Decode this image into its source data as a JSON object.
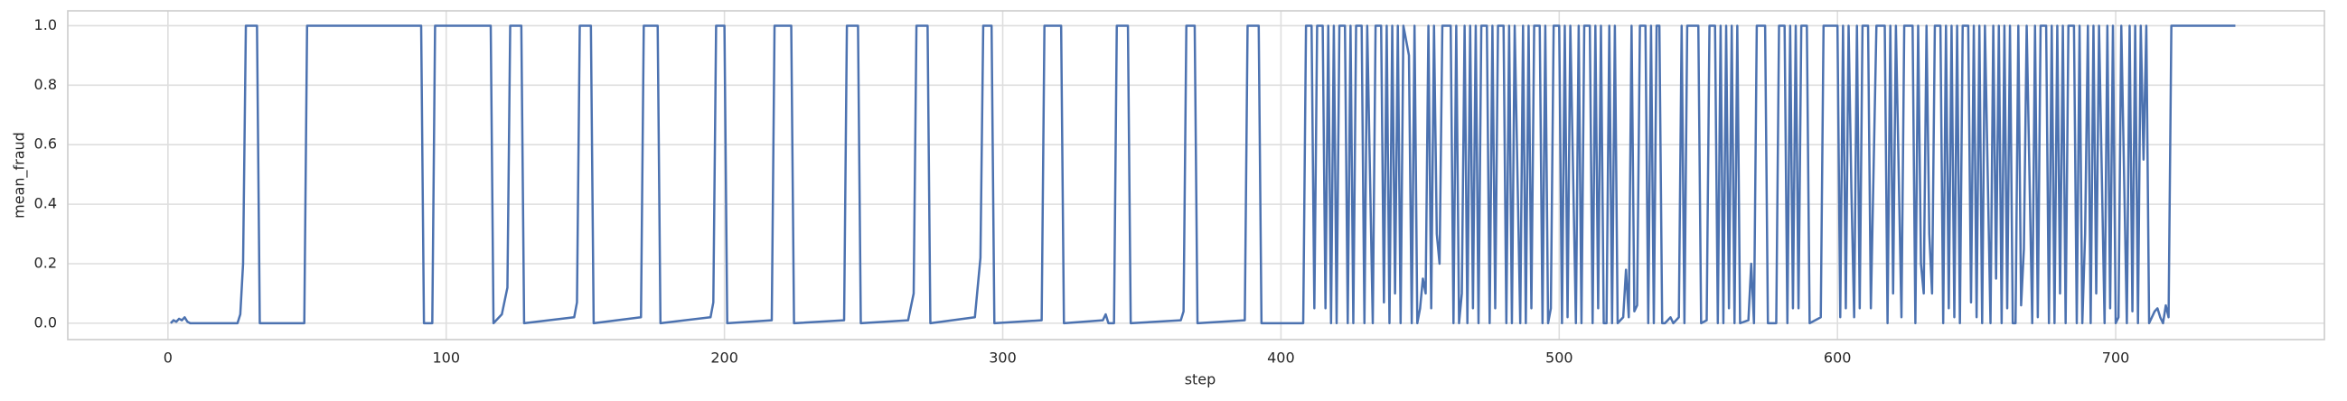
{
  "chart_data": {
    "type": "line",
    "xlabel": "step",
    "ylabel": "mean_fraud",
    "xlim": [
      -36,
      775
    ],
    "ylim": [
      -0.055,
      1.05
    ],
    "xticks": [
      0,
      100,
      200,
      300,
      400,
      500,
      600,
      700
    ],
    "yticks": [
      {
        "value": 0,
        "label": "0.0"
      },
      0.2,
      0.4,
      0.6,
      0.8,
      {
        "value": 1,
        "label": "1.0"
      }
    ],
    "grid": true,
    "series": [
      {
        "color": "#4c72b0",
        "x": [
          1,
          2,
          3,
          4,
          5,
          6,
          7,
          8,
          25,
          26,
          27,
          28,
          32,
          33,
          49,
          50,
          91,
          92,
          95,
          96,
          116,
          117,
          120,
          122,
          123,
          127,
          128,
          146,
          147,
          148,
          152,
          153,
          170,
          171,
          176,
          177,
          195,
          196,
          197,
          200,
          201,
          217,
          218,
          224,
          225,
          243,
          244,
          248,
          249,
          266,
          268,
          269,
          273,
          274,
          290,
          292,
          293,
          296,
          297,
          314,
          315,
          321,
          322,
          336,
          337,
          338,
          340,
          341,
          345,
          346,
          364,
          365,
          366,
          369,
          370,
          387,
          388,
          392,
          393,
          408,
          409,
          411,
          412,
          413,
          415,
          416,
          417,
          418,
          419,
          420,
          421,
          423,
          424,
          425,
          426,
          427,
          429,
          430,
          431,
          433,
          434,
          436,
          437,
          438,
          439,
          440,
          441,
          442,
          443,
          444,
          446,
          447,
          448,
          449,
          450,
          451,
          452,
          453,
          454,
          455,
          456,
          457,
          458,
          461,
          462,
          463,
          464,
          465,
          466,
          467,
          468,
          469,
          470,
          471,
          472,
          474,
          475,
          476,
          477,
          478,
          480,
          481,
          482,
          483,
          484,
          486,
          487,
          488,
          489,
          490,
          491,
          493,
          494,
          495,
          496,
          497,
          498,
          500,
          501,
          502,
          503,
          504,
          506,
          507,
          508,
          509,
          511,
          512,
          513,
          514,
          515,
          516,
          517,
          518,
          519,
          520,
          521,
          523,
          524,
          525,
          526,
          527,
          528,
          529,
          531,
          532,
          533,
          534,
          535,
          536,
          537,
          538,
          539,
          540,
          541,
          542,
          543,
          544,
          545,
          546,
          549,
          550,
          551,
          553,
          554,
          556,
          557,
          558,
          559,
          560,
          561,
          562,
          563,
          564,
          565,
          568,
          569,
          570,
          571,
          574,
          575,
          578,
          579,
          581,
          582,
          583,
          584,
          585,
          586,
          587,
          589,
          590,
          594,
          595,
          600,
          601,
          602,
          603,
          604,
          605,
          606,
          607,
          608,
          609,
          611,
          612,
          614,
          617,
          618,
          619,
          620,
          621,
          623,
          624,
          627,
          628,
          629,
          630,
          631,
          632,
          633,
          634,
          635,
          637,
          638,
          639,
          640,
          641,
          642,
          643,
          644,
          645,
          647,
          648,
          649,
          650,
          651,
          652,
          653,
          655,
          656,
          657,
          658,
          659,
          660,
          661,
          662,
          663,
          664,
          665,
          666,
          667,
          668,
          670,
          671,
          672,
          673,
          675,
          676,
          677,
          678,
          679,
          680,
          681,
          682,
          683,
          685,
          686,
          687,
          688,
          689,
          690,
          691,
          692,
          693,
          694,
          696,
          697,
          698,
          699,
          700,
          701,
          702,
          704,
          705,
          706,
          707,
          708,
          709,
          710,
          711,
          712,
          714,
          715,
          716,
          717,
          718,
          719,
          720,
          743
        ],
        "values": [
          0,
          0.01,
          0.005,
          0.015,
          0.01,
          0.02,
          0.005,
          0,
          0,
          0.03,
          0.2,
          1,
          1,
          0,
          0,
          1,
          1,
          0,
          0,
          1,
          1,
          0,
          0.03,
          0.12,
          1,
          1,
          0,
          0.02,
          0.07,
          1,
          1,
          0,
          0.02,
          1,
          1,
          0,
          0.02,
          0.07,
          1,
          1,
          0,
          0.01,
          1,
          1,
          0,
          0.01,
          1,
          1,
          0,
          0.01,
          0.1,
          1,
          1,
          0,
          0.02,
          0.22,
          1,
          1,
          0,
          0.01,
          1,
          1,
          0,
          0.01,
          0.03,
          0,
          0,
          1,
          1,
          0,
          0.01,
          0.04,
          1,
          1,
          0,
          0.01,
          1,
          1,
          0,
          0,
          1,
          1,
          0.05,
          1,
          1,
          0.05,
          1,
          0,
          1,
          0,
          1,
          1,
          0,
          1,
          0,
          1,
          1,
          0,
          1,
          0,
          1,
          1,
          0.07,
          1,
          0,
          1,
          0.1,
          1,
          0,
          1,
          0.9,
          0,
          1,
          0,
          0.05,
          0.15,
          0.1,
          1,
          0.05,
          1,
          0.3,
          0.2,
          1,
          1,
          0,
          1,
          0,
          0.1,
          1,
          0,
          1,
          0.05,
          1,
          0,
          1,
          1,
          0,
          1,
          0.05,
          1,
          1,
          0,
          1,
          0,
          1,
          0,
          1,
          0,
          1,
          0.05,
          1,
          1,
          0,
          1,
          0,
          0.05,
          1,
          1,
          0,
          1,
          0.02,
          1,
          0,
          1,
          0,
          1,
          1,
          0,
          1,
          0.05,
          1,
          0,
          0,
          1,
          0,
          1,
          0,
          0.02,
          0.18,
          0.02,
          1,
          0.04,
          0.06,
          1,
          1,
          0,
          1,
          0,
          1,
          1,
          0,
          0,
          0.01,
          0.02,
          0,
          0.01,
          0.02,
          1,
          0,
          1,
          1,
          1,
          0,
          0.01,
          1,
          1,
          0,
          1,
          0,
          1,
          0.05,
          1,
          0,
          1,
          0,
          0.01,
          0.2,
          0,
          1,
          1,
          0,
          0,
          1,
          1,
          0,
          1,
          0.05,
          1,
          0.05,
          1,
          1,
          0,
          0.02,
          1,
          1,
          0.02,
          1,
          0.05,
          1,
          0.45,
          0.02,
          1,
          0.05,
          1,
          1,
          0.05,
          1,
          1,
          0,
          1,
          0.1,
          1,
          0.02,
          1,
          1,
          0,
          1,
          0.2,
          0.1,
          1,
          0.3,
          0.1,
          1,
          1,
          0,
          1,
          0.05,
          1,
          0.02,
          1,
          0,
          1,
          1,
          0.07,
          1,
          0.02,
          1,
          0,
          1,
          0,
          1,
          0.15,
          1,
          0,
          1,
          0.05,
          1,
          0,
          0,
          1,
          0.06,
          0.25,
          1,
          0,
          1,
          0.02,
          1,
          1,
          0,
          1,
          0,
          1,
          0.1,
          1,
          0,
          1,
          1,
          0,
          1,
          0,
          0.3,
          1,
          0,
          1,
          0.1,
          1,
          0,
          1,
          0.05,
          1,
          0,
          0.02,
          1,
          0,
          1,
          0.04,
          1,
          0,
          1,
          0.55,
          1,
          0,
          0.04,
          0.05,
          0.02,
          0,
          0.06,
          0.02,
          1,
          1
        ]
      }
    ]
  }
}
